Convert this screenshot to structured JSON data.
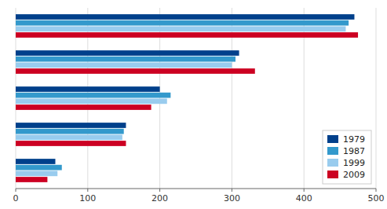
{
  "chart_data": {
    "type": "bar",
    "orientation": "horizontal",
    "categories": [
      null,
      null,
      null,
      null,
      null
    ],
    "series": [
      {
        "name": "1979",
        "color": "#00408B",
        "values": [
          470,
          310,
          200,
          153,
          55
        ]
      },
      {
        "name": "1987",
        "color": "#3399CC",
        "values": [
          462,
          305,
          215,
          150,
          64
        ]
      },
      {
        "name": "1999",
        "color": "#99CCEE",
        "values": [
          458,
          300,
          210,
          148,
          58
        ]
      },
      {
        "name": "2009",
        "color": "#CC0022",
        "values": [
          475,
          332,
          188,
          153,
          44
        ]
      }
    ],
    "xlim": [
      0,
      500
    ],
    "xticks": [
      0,
      100,
      200,
      300,
      400,
      500
    ],
    "grid": true,
    "legend": "lower right"
  }
}
